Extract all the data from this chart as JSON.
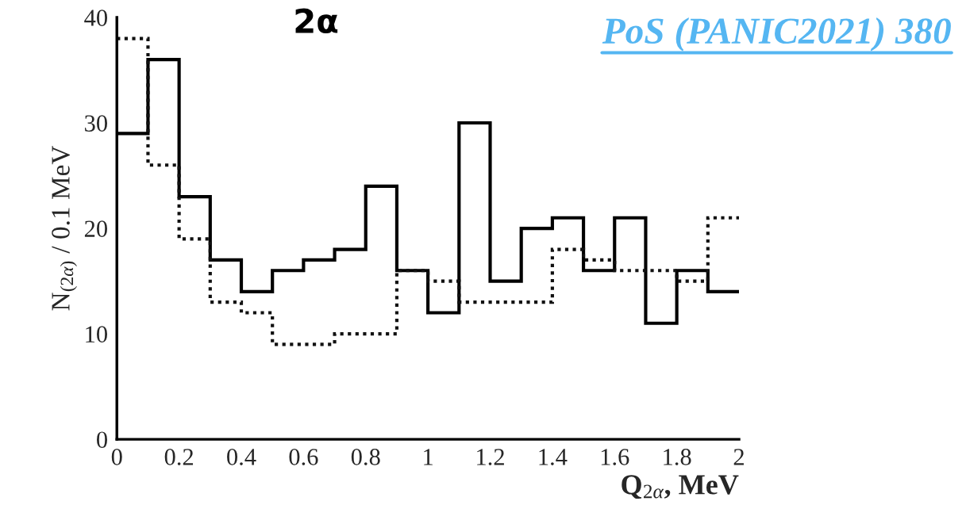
{
  "chart_data": {
    "type": "histogram",
    "xlabel": "Q$_{2α}$, MeV",
    "ylabel": "N$_{(2α)}$ / 0.1 MeV",
    "bins": [
      0,
      0.1,
      0.2,
      0.3,
      0.4,
      0.5,
      0.6,
      0.7,
      0.8,
      0.9,
      1.0,
      1.1,
      1.2,
      1.3,
      1.4,
      1.5,
      1.6,
      1.7,
      1.8,
      1.9,
      2.0
    ],
    "series": [
      {
        "color": "#000000",
        "line_style": "solid",
        "values": [
          29,
          36,
          23,
          17,
          14,
          16,
          17,
          18,
          24,
          16,
          12,
          30,
          15,
          20,
          21,
          16,
          21,
          11,
          16,
          14
        ]
      },
      {
        "color": "#111111",
        "line_style": "dotted",
        "values": [
          38,
          26,
          19,
          13,
          12,
          9,
          9,
          10,
          10,
          16,
          15,
          13,
          13,
          13,
          18,
          17,
          16,
          16,
          15,
          21
        ]
      }
    ],
    "xlim": [
      0,
      2
    ],
    "xticks": [
      0,
      0.2,
      0.4,
      0.6,
      0.8,
      1,
      1.2,
      1.4,
      1.6,
      1.8,
      2
    ],
    "ylim": [
      0,
      40
    ],
    "yticks": [
      0,
      10,
      20,
      30,
      40
    ],
    "grid": false,
    "legend": false,
    "annotations": [
      "2α",
      "PoS (PANIC2021) 380"
    ]
  }
}
